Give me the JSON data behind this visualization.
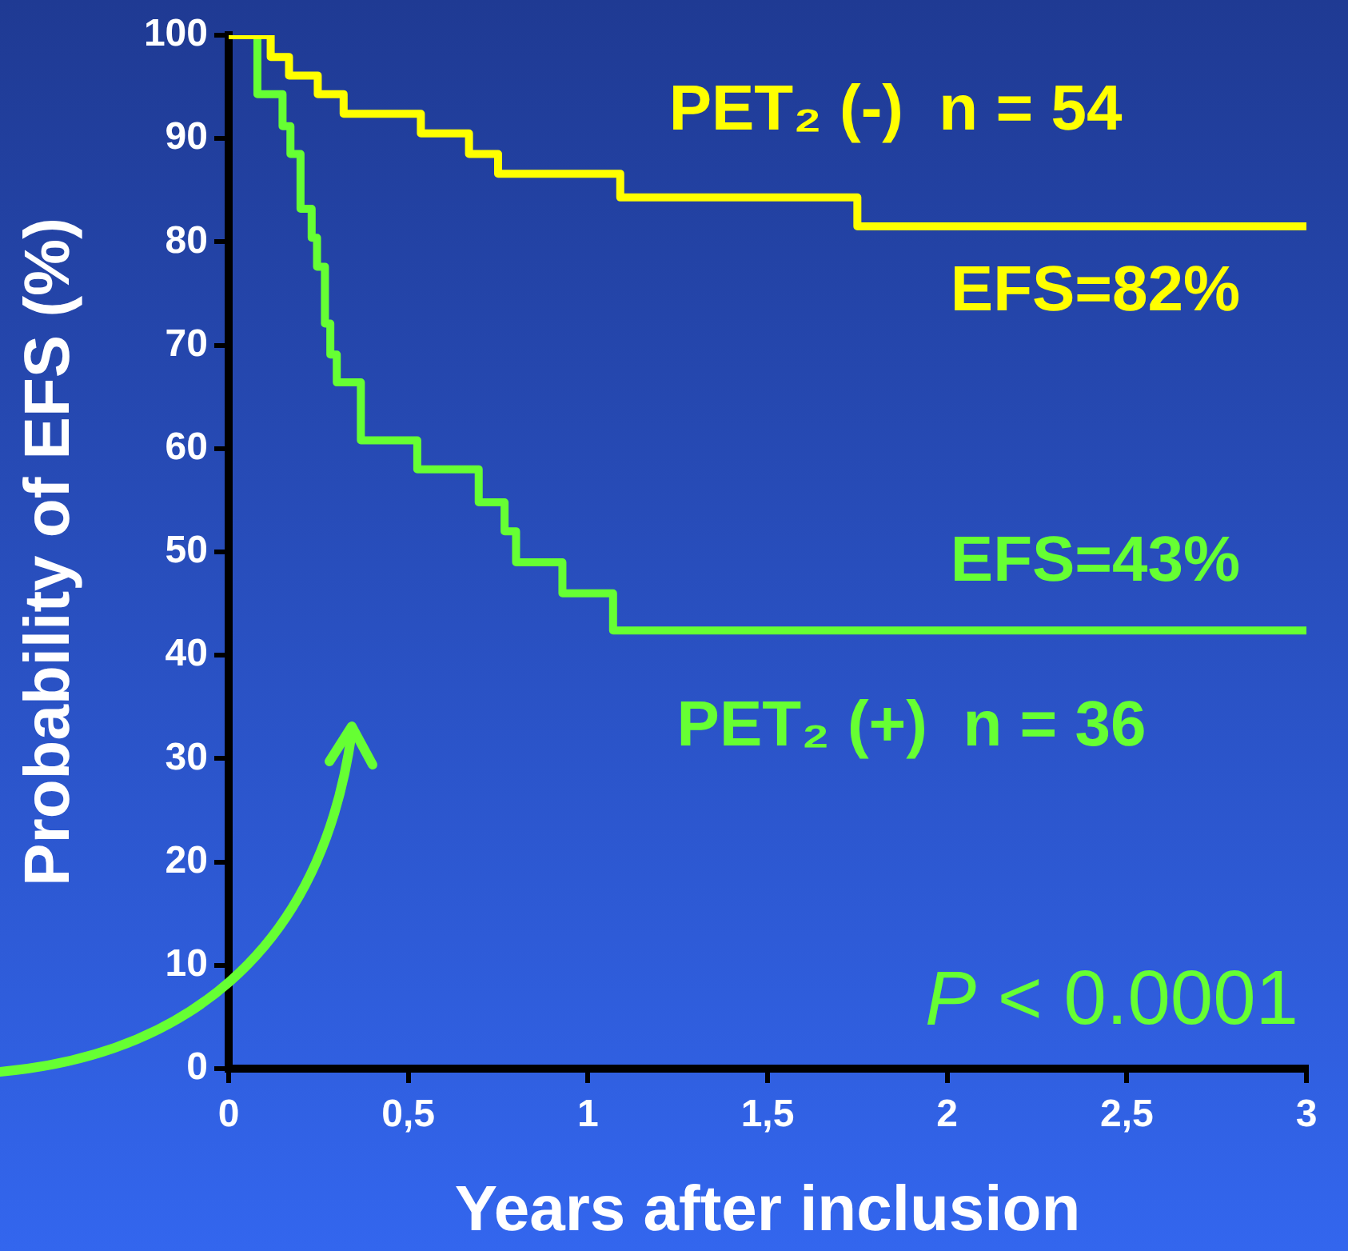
{
  "chart_data": {
    "type": "step",
    "xlabel": "Years after inclusion",
    "ylabel": "Probability of EFS (%)",
    "xlim": [
      0,
      3
    ],
    "xticks": [
      0,
      {
        "value": 0.5,
        "label": "0,5"
      },
      1,
      {
        "value": 1.5,
        "label": "1,5"
      },
      2,
      {
        "value": 2.5,
        "label": "2,5"
      },
      3
    ],
    "ylim": [
      0,
      100
    ],
    "yticks": [
      0,
      10,
      20,
      30,
      40,
      50,
      60,
      70,
      80,
      90,
      100
    ],
    "grid": false,
    "legend": false,
    "series": [
      {
        "name": "PET₂ (-)  n = 54",
        "color": "#ffff00",
        "x": [
          0,
          0.117,
          0.168,
          0.248,
          0.32,
          0.535,
          0.669,
          0.75,
          1.09,
          1.75,
          3
        ],
        "values": [
          100,
          97.9,
          96.1,
          94.3,
          92.4,
          90.5,
          88.5,
          86.6,
          84.3,
          81.5,
          81.5
        ]
      },
      {
        "name": "PET₂ (+)  n = 36",
        "color": "#66ff33",
        "x": [
          0,
          0.08,
          0.15,
          0.172,
          0.2,
          0.231,
          0.246,
          0.268,
          0.283,
          0.301,
          0.368,
          0.525,
          0.696,
          0.768,
          0.8,
          0.929,
          1.07,
          3
        ],
        "values": [
          100,
          94.3,
          91.2,
          88.5,
          83.2,
          80.4,
          77.6,
          72.1,
          69.1,
          66.4,
          60.8,
          58,
          54.8,
          52,
          49,
          46,
          42.4,
          42.4
        ]
      }
    ],
    "annotations": [
      "EFS=82%",
      "EFS=43%",
      "P < 0.0001"
    ]
  }
}
